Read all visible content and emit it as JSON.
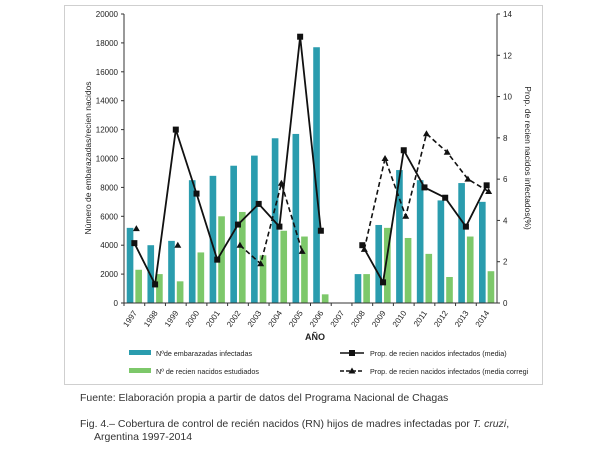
{
  "chart_data": {
    "type": "bar",
    "categories": [
      "1997",
      "1998",
      "1999",
      "2000",
      "2001",
      "2002",
      "2003",
      "2004",
      "2005",
      "2006",
      "2007",
      "2008",
      "2009",
      "2010",
      "2011",
      "2012",
      "2013",
      "2014"
    ],
    "xlabel": "AÑO",
    "ylabel": "Número de embarazadas/recien nacidos",
    "y2label": "Prop. de recien nacidos infectados(%)",
    "ylim": [
      0,
      20000
    ],
    "y_ticks": [
      0,
      2000,
      4000,
      6000,
      8000,
      10000,
      12000,
      14000,
      16000,
      18000,
      20000
    ],
    "y2lim": [
      0,
      14
    ],
    "y2_ticks": [
      0,
      2,
      4,
      6,
      8,
      10,
      12,
      14
    ],
    "series": [
      {
        "name": "Nºde embarazadas infectadas",
        "type": "bar",
        "axis": "left",
        "values": [
          5200,
          4000,
          4300,
          8500,
          8800,
          9500,
          10200,
          11400,
          11700,
          17700,
          null,
          2000,
          5400,
          9200,
          8500,
          7100,
          8300,
          7000
        ]
      },
      {
        "name": "Nº de recien nacidos estudiados",
        "type": "bar",
        "axis": "left",
        "values": [
          2300,
          2000,
          1500,
          3500,
          6000,
          6300,
          3300,
          5000,
          4600,
          600,
          null,
          2000,
          5200,
          4500,
          3400,
          1800,
          4600,
          2200
        ]
      },
      {
        "name": "Prop. de recien nacidos infectados (media)",
        "type": "line",
        "axis": "right",
        "style": "solid",
        "values": [
          2.9,
          0.9,
          8.4,
          5.3,
          2.1,
          3.8,
          4.8,
          3.7,
          12.9,
          3.5,
          null,
          2.8,
          1.0,
          7.4,
          5.6,
          5.1,
          3.7,
          5.7
        ]
      },
      {
        "name": "Prop. de recien nacidos infectados (media corregi",
        "type": "line",
        "axis": "right",
        "style": "dashed",
        "values": [
          3.6,
          null,
          2.8,
          null,
          null,
          2.8,
          1.9,
          5.8,
          2.5,
          null,
          null,
          2.6,
          7.0,
          4.2,
          8.2,
          7.3,
          6.0,
          5.4
        ]
      }
    ],
    "legend_position": "bottom",
    "colors": {
      "embarazadas": "#2a9cae",
      "recien": "#7dc86a",
      "line": "#111111"
    }
  },
  "source_text": "Fuente: Elaboración propia a partir de datos del Programa Nacional de Chagas",
  "caption": {
    "prefix": "Fig. 4.– Cobertura de control de recién nacidos (RN) hijos de madres infectadas por ",
    "italic": "T. cruzi",
    "suffix": ",",
    "line2": "Argentina 1997-2014"
  }
}
